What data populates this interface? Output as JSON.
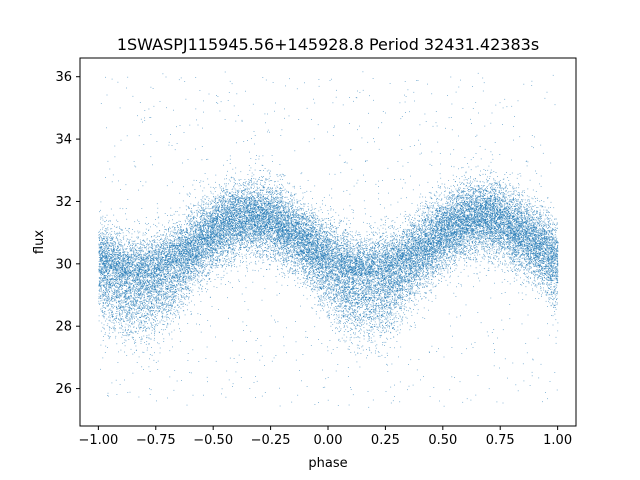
{
  "chart_data": {
    "type": "scatter",
    "title": "1SWASPJ115945.56+145928.8 Period 32431.42383s",
    "xlabel": "phase",
    "ylabel": "flux",
    "xlim": [
      -1.08,
      1.08
    ],
    "ylim": [
      24.8,
      36.6
    ],
    "xticks": [
      -1.0,
      -0.75,
      -0.5,
      -0.25,
      0.0,
      0.25,
      0.5,
      0.75,
      1.0
    ],
    "xtick_labels": [
      "−1.00",
      "−0.75",
      "−0.50",
      "−0.25",
      "0.00",
      "0.25",
      "0.50",
      "0.75",
      "1.00"
    ],
    "yticks": [
      26,
      28,
      30,
      32,
      34,
      36
    ],
    "ytick_labels": [
      "26",
      "28",
      "30",
      "32",
      "34",
      "36"
    ],
    "grid": false,
    "point_color": "#1f77b4",
    "series": [
      {
        "phase_range": [
          -1.0,
          1.0
        ],
        "model": "sinusoid",
        "mean_flux": 30.55,
        "amplitude": 0.95,
        "peak_phases": [
          -0.33,
          0.67
        ],
        "trough_phases": [
          -0.83,
          0.17
        ],
        "scatter_sigma": 0.6,
        "flux_extent": [
          25.4,
          36.2
        ],
        "n_points": 32000
      }
    ]
  }
}
